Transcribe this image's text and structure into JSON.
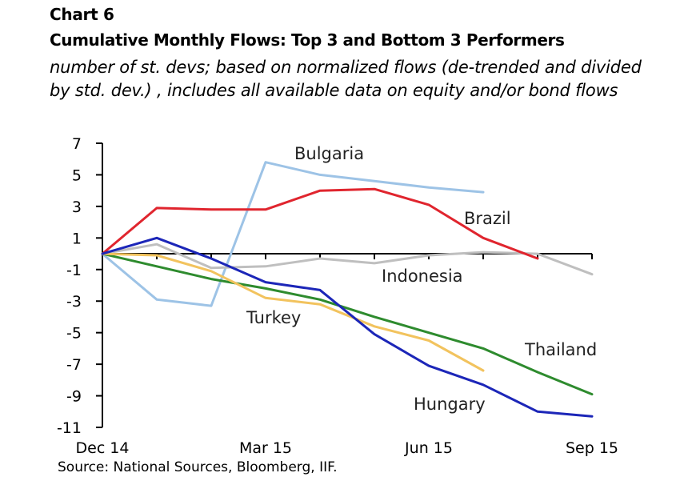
{
  "header": {
    "chart_label": "Chart 6",
    "title": "Cumulative Monthly Flows: Top 3 and Bottom 3 Performers",
    "subtitle": "number of st. devs; based on normalized flows (de-trended and divided by std. dev.) , includes all available data on equity and/or bond flows"
  },
  "source": "Source: National Sources, Bloomberg, IIF.",
  "chart_data": {
    "type": "line",
    "title": "Cumulative Monthly Flows: Top 3 and Bottom 3 Performers",
    "xlabel": "",
    "ylabel": "",
    "ylim": [
      -11,
      7
    ],
    "yticks": [
      7,
      5,
      3,
      1,
      -1,
      -3,
      -5,
      -7,
      -9,
      -11
    ],
    "x": [
      "Dec 14",
      "Jan 15",
      "Feb 15",
      "Mar 15",
      "Apr 15",
      "May 15",
      "Jun 15",
      "Jul 15",
      "Aug 15",
      "Sep 15"
    ],
    "xtick_labels": [
      "Dec 14",
      "Mar 15",
      "Jun 15",
      "Sep 15"
    ],
    "grid": false,
    "series": [
      {
        "name": "Bulgaria",
        "color": "#9dc3e6",
        "values": [
          0,
          -2.9,
          -3.3,
          5.8,
          5.0,
          4.6,
          4.2,
          3.9,
          null,
          null
        ]
      },
      {
        "name": "Brazil",
        "color": "#e0252e",
        "values": [
          0,
          2.9,
          2.8,
          2.8,
          4.0,
          4.1,
          3.1,
          1.0,
          -0.3,
          null
        ]
      },
      {
        "name": "Indonesia",
        "color": "#bfbfbf",
        "values": [
          0,
          0.6,
          -0.9,
          -0.8,
          -0.3,
          -0.6,
          -0.1,
          0.1,
          0.0,
          -1.3
        ]
      },
      {
        "name": "Turkey",
        "color": "#f2c35e",
        "values": [
          0,
          -0.1,
          -1.1,
          -2.8,
          -3.2,
          -4.6,
          -5.5,
          -7.4,
          null,
          null
        ]
      },
      {
        "name": "Thailand",
        "color": "#2e8b2e",
        "values": [
          0,
          -0.8,
          -1.6,
          -2.2,
          -2.9,
          -4.0,
          -5.0,
          -6.0,
          -7.5,
          -8.9
        ]
      },
      {
        "name": "Hungary",
        "color": "#1c26b8",
        "values": [
          0,
          1.0,
          -0.3,
          -1.8,
          -2.3,
          -5.1,
          -7.1,
          -8.3,
          -10.0,
          -10.3
        ]
      }
    ]
  }
}
